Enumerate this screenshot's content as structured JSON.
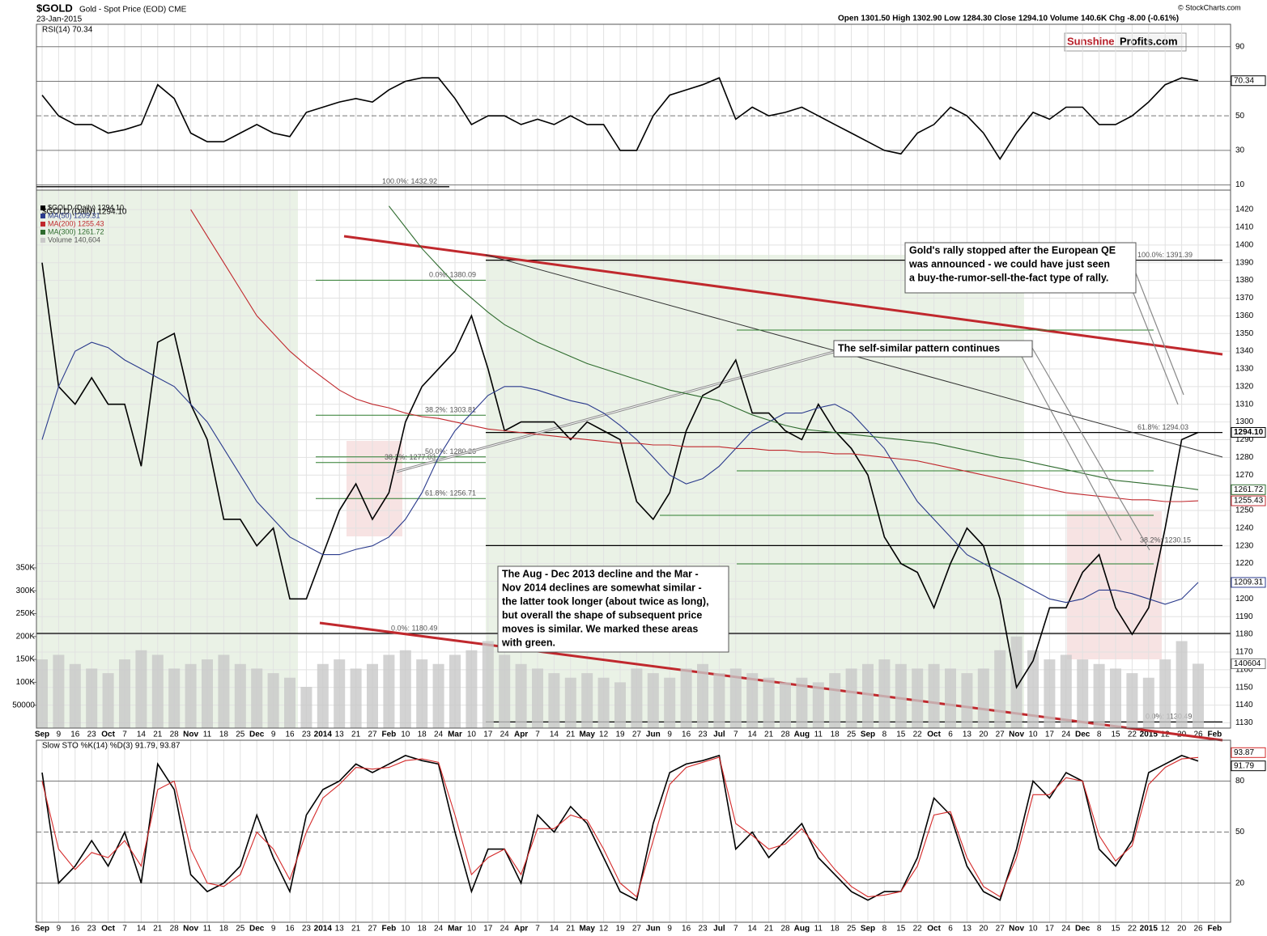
{
  "header": {
    "symbol": "$GOLD",
    "name": "Gold - Spot Price (EOD) CME",
    "date": "23-Jan-2015",
    "quote": "Open 1301.50  High 1302.90  Low 1284.30  Close 1294.10  Volume 140.6K  Chg -8.00 (-0.61%)",
    "copyright": "© StockCharts.com",
    "logo_left": "Sunshine",
    "logo_right": "Profits.com"
  },
  "annotations": [
    [
      "Gold's rally stopped after the European QE",
      "was announced - we could have just seen",
      "a buy-the-rumor-sell-the-fact type of rally."
    ],
    [
      "The self-similar pattern continues"
    ],
    [
      "The Aug - Dec 2013 decline and the Mar -",
      "Nov 2014 declines are somewhat similar -",
      "the latter took longer (about twice as long),",
      "but overall the shape of subsequent price",
      "moves is similar. We marked these areas",
      "with green."
    ]
  ],
  "chart_data": [
    {
      "type": "line",
      "title": "RSI(14) 70.34",
      "ylim": [
        7,
        103
      ],
      "yticks": [
        10,
        30,
        50,
        70,
        90
      ],
      "series": [
        {
          "name": "RSI(14)",
          "color": "#000000",
          "values": [
            62,
            50,
            45,
            45,
            40,
            42,
            45,
            68,
            60,
            40,
            35,
            35,
            40,
            45,
            40,
            38,
            52,
            55,
            58,
            60,
            58,
            65,
            70,
            72,
            72,
            60,
            45,
            50,
            50,
            45,
            48,
            45,
            50,
            45,
            45,
            30,
            30,
            50,
            62,
            65,
            68,
            72,
            48,
            55,
            50,
            52,
            55,
            50,
            45,
            40,
            35,
            30,
            28,
            40,
            45,
            55,
            50,
            40,
            25,
            40,
            52,
            48,
            55,
            55,
            45,
            45,
            50,
            58,
            68,
            72,
            70.34,
            null
          ]
        }
      ]
    },
    {
      "type": "line",
      "title": "$GOLD (Daily) 1294.10",
      "categories": [
        "Sep",
        "9",
        "16",
        "23",
        "Oct",
        "7",
        "14",
        "21",
        "28",
        "Nov",
        "11",
        "18",
        "25",
        "Dec",
        "9",
        "16",
        "23",
        "2014",
        "13",
        "21",
        "27",
        "Feb",
        "10",
        "18",
        "24",
        "Mar",
        "10",
        "17",
        "24",
        "Apr",
        "7",
        "14",
        "21",
        "May",
        "12",
        "19",
        "27",
        "Jun",
        "9",
        "16",
        "23",
        "Jul",
        "7",
        "14",
        "21",
        "28",
        "Aug",
        "11",
        "18",
        "25",
        "Sep",
        "8",
        "15",
        "22",
        "Oct",
        "6",
        "13",
        "20",
        "27",
        "Nov",
        "10",
        "17",
        "24",
        "Dec",
        "8",
        "15",
        "22",
        "2015",
        "12",
        "20",
        "26",
        "Feb"
      ],
      "ylim": [
        1127,
        1431
      ],
      "yticks": [
        1130,
        1140,
        1150,
        1160,
        1170,
        1180,
        1190,
        1200,
        1210,
        1220,
        1230,
        1240,
        1250,
        1260,
        1270,
        1280,
        1290,
        1300,
        1310,
        1320,
        1330,
        1340,
        1350,
        1360,
        1370,
        1380,
        1390,
        1400,
        1410,
        1420
      ],
      "y2lim": [
        0,
        1175000
      ],
      "y2ticks": [
        50000,
        {
          "value": 100000,
          "label": "100K"
        },
        {
          "value": 150000,
          "label": "150K"
        },
        {
          "value": 200000,
          "label": "200K"
        },
        {
          "value": 250000,
          "label": "250K"
        },
        {
          "value": 300000,
          "label": "300K"
        },
        {
          "value": 350000,
          "label": "350K"
        }
      ],
      "series": [
        {
          "name": "$GOLD (Daily) 1294.10",
          "color": "#000000",
          "last_label": "1294.10",
          "values": [
            1390,
            1320,
            1310,
            1325,
            1310,
            1310,
            1275,
            1345,
            1350,
            1310,
            1290,
            1245,
            1245,
            1230,
            1240,
            1200,
            1200,
            1225,
            1250,
            1265,
            1245,
            1260,
            1300,
            1320,
            1330,
            1340,
            1360,
            1330,
            1295,
            1300,
            1300,
            1300,
            1290,
            1300,
            1295,
            1290,
            1255,
            1245,
            1260,
            1295,
            1315,
            1320,
            1335,
            1305,
            1305,
            1295,
            1290,
            1310,
            1295,
            1285,
            1270,
            1235,
            1220,
            1215,
            1195,
            1220,
            1240,
            1230,
            1200,
            1150,
            1165,
            1195,
            1195,
            1215,
            1225,
            1195,
            1180,
            1195,
            1240,
            1290,
            1294.1,
            null
          ]
        },
        {
          "name": "MA(50) 1209.31",
          "color": "#2a3a8c",
          "values": [
            1290,
            1320,
            1340,
            1345,
            1342,
            1335,
            1330,
            1325,
            1320,
            1310,
            1300,
            1285,
            1270,
            1255,
            1245,
            1235,
            1230,
            1225,
            1225,
            1228,
            1230,
            1235,
            1245,
            1260,
            1280,
            1295,
            1305,
            1315,
            1320,
            1320,
            1318,
            1315,
            1312,
            1310,
            1305,
            1298,
            1290,
            1280,
            1270,
            1265,
            1268,
            1275,
            1285,
            1295,
            1300,
            1305,
            1305,
            1308,
            1310,
            1305,
            1295,
            1285,
            1270,
            1255,
            1245,
            1235,
            1225,
            1220,
            1215,
            1210,
            1205,
            1200,
            1198,
            1200,
            1205,
            1205,
            1203,
            1200,
            1197,
            1200,
            1209.31,
            null
          ]
        },
        {
          "name": "MA(200) 1255.43",
          "color": "#c0282d",
          "values": [
            null,
            null,
            null,
            null,
            null,
            null,
            null,
            null,
            null,
            1420,
            1405,
            1390,
            1375,
            1360,
            1350,
            1340,
            1332,
            1325,
            1318,
            1313,
            1310,
            1308,
            1305,
            1303,
            1302,
            1300,
            1298,
            1296,
            1295,
            1294,
            1293,
            1292,
            1291,
            1290,
            1289,
            1288,
            1288,
            1287,
            1287,
            1286,
            1286,
            1286,
            1285,
            1285,
            1284,
            1284,
            1283,
            1283,
            1282,
            1282,
            1281,
            1280,
            1279,
            1278,
            1276,
            1274,
            1272,
            1270,
            1268,
            1266,
            1264,
            1262,
            1260,
            1259,
            1258,
            1257,
            1256,
            1256,
            1255,
            1255,
            1255.43,
            null
          ]
        },
        {
          "name": "MA(300) 1261.72",
          "color": "#2e6b2e",
          "values": [
            null,
            null,
            null,
            null,
            null,
            null,
            null,
            null,
            null,
            null,
            null,
            null,
            null,
            null,
            null,
            null,
            null,
            null,
            null,
            null,
            null,
            1422,
            1410,
            1398,
            1388,
            1378,
            1370,
            1362,
            1355,
            1350,
            1345,
            1341,
            1337,
            1333,
            1330,
            1327,
            1324,
            1321,
            1318,
            1316,
            1314,
            1312,
            1308,
            1304,
            1301,
            1298,
            1296,
            1295,
            1294,
            1293,
            1292,
            1291,
            1290,
            1289,
            1288,
            1286,
            1284,
            1282,
            1280,
            1279,
            1277,
            1275,
            1273,
            1271,
            1269,
            1267,
            1266,
            1265,
            1264,
            1263,
            1261.72,
            null
          ]
        },
        {
          "name": "Volume 140,604",
          "type": "bar",
          "axis": "y2",
          "color": "#c8c8c8",
          "values": [
            150000,
            160000,
            140000,
            130000,
            120000,
            150000,
            170000,
            160000,
            130000,
            140000,
            150000,
            160000,
            140000,
            130000,
            120000,
            110000,
            90000,
            140000,
            150000,
            130000,
            140000,
            160000,
            170000,
            150000,
            140000,
            160000,
            170000,
            190000,
            160000,
            140000,
            130000,
            120000,
            110000,
            120000,
            110000,
            100000,
            130000,
            120000,
            110000,
            130000,
            140000,
            120000,
            130000,
            120000,
            110000,
            100000,
            110000,
            100000,
            120000,
            130000,
            140000,
            150000,
            140000,
            130000,
            140000,
            130000,
            120000,
            130000,
            170000,
            200000,
            170000,
            150000,
            160000,
            150000,
            140000,
            130000,
            120000,
            110000,
            150000,
            190000,
            140604,
            null
          ]
        }
      ],
      "fib_levels": [
        {
          "label": "100.0%: 1432.92",
          "value": 1432.92
        },
        {
          "label": "0.0%: 1380.09",
          "value": 1380.09
        },
        {
          "label": "38.2%: 1303.81",
          "value": 1303.81
        },
        {
          "label": "50.0%: 1280.26",
          "value": 1280.26
        },
        {
          "label": "38.2%: 1277.03",
          "value": 1277.03
        },
        {
          "label": "61.8%: 1256.71",
          "value": 1256.71
        },
        {
          "label": "0.0%: 1180.49",
          "value": 1180.49
        },
        {
          "label": "100.0%: 1391.39",
          "value": 1391.39
        },
        {
          "label": "61.8%: 1294.03",
          "value": 1294.03
        },
        {
          "label": "38.2%: 1230.15",
          "value": 1230.15
        },
        {
          "label": "0.0%: 1130.49",
          "value": 1130.49
        }
      ]
    },
    {
      "type": "line",
      "title": "Slow STO %K(14) %D(3) 91.79, 93.87",
      "ylim": [
        -3,
        104
      ],
      "yticks": [
        20,
        50,
        80
      ],
      "series": [
        {
          "name": "%K(14)",
          "color": "#000000",
          "values": [
            85,
            20,
            30,
            45,
            30,
            50,
            20,
            90,
            75,
            25,
            15,
            20,
            30,
            60,
            35,
            15,
            60,
            75,
            80,
            90,
            85,
            90,
            95,
            92,
            90,
            50,
            15,
            40,
            40,
            20,
            60,
            50,
            65,
            55,
            35,
            15,
            10,
            55,
            85,
            90,
            92,
            95,
            40,
            50,
            35,
            45,
            55,
            35,
            25,
            15,
            10,
            15,
            15,
            35,
            70,
            60,
            30,
            15,
            10,
            40,
            80,
            70,
            85,
            80,
            40,
            30,
            45,
            85,
            90,
            95,
            91.79,
            null
          ]
        },
        {
          "name": "%D(3)",
          "color": "#d42a2a",
          "values": [
            80,
            40,
            28,
            38,
            35,
            45,
            30,
            75,
            80,
            40,
            20,
            18,
            25,
            50,
            40,
            22,
            50,
            70,
            78,
            88,
            87,
            88,
            92,
            93,
            91,
            60,
            25,
            35,
            40,
            25,
            52,
            52,
            60,
            57,
            40,
            20,
            12,
            45,
            78,
            88,
            91,
            94,
            55,
            48,
            40,
            43,
            52,
            40,
            28,
            18,
            12,
            13,
            15,
            30,
            60,
            62,
            35,
            18,
            12,
            35,
            72,
            72,
            82,
            80,
            48,
            33,
            42,
            78,
            88,
            93,
            93.87,
            null
          ]
        }
      ]
    }
  ]
}
